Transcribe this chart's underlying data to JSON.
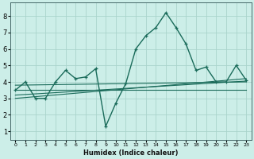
{
  "x_main": [
    0,
    1,
    2,
    3,
    4,
    5,
    6,
    7,
    8,
    9,
    10,
    11,
    12,
    13,
    14,
    15,
    16,
    17,
    18,
    19,
    20,
    21,
    22,
    23
  ],
  "y_main": [
    3.5,
    4.0,
    3.0,
    3.0,
    4.0,
    4.7,
    4.2,
    4.3,
    4.8,
    1.3,
    2.7,
    3.9,
    6.0,
    6.8,
    7.3,
    8.2,
    7.3,
    6.3,
    4.7,
    4.9,
    4.0,
    4.0,
    5.0,
    4.1
  ],
  "trend1_x": [
    0,
    23
  ],
  "trend1_y": [
    3.5,
    3.5
  ],
  "trend2_x": [
    0,
    23
  ],
  "trend2_y": [
    3.0,
    4.2
  ],
  "trend3_x": [
    0,
    23
  ],
  "trend3_y": [
    3.8,
    4.0
  ],
  "trend4_x": [
    0,
    23
  ],
  "trend4_y": [
    3.2,
    4.05
  ],
  "line_color": "#1a6b5a",
  "bg_color": "#cceee8",
  "grid_color": "#aad4cc",
  "xlabel": "Humidex (Indice chaleur)",
  "ylim": [
    0.5,
    8.8
  ],
  "xlim": [
    -0.5,
    23.5
  ],
  "yticks": [
    1,
    2,
    3,
    4,
    5,
    6,
    7,
    8
  ],
  "xticks": [
    0,
    1,
    2,
    3,
    4,
    5,
    6,
    7,
    8,
    9,
    10,
    11,
    12,
    13,
    14,
    15,
    16,
    17,
    18,
    19,
    20,
    21,
    22,
    23
  ]
}
